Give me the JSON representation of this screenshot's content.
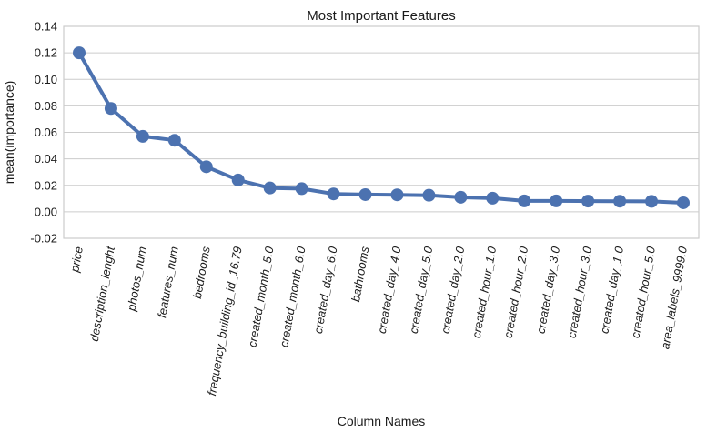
{
  "chart_data": {
    "type": "line",
    "title": "Most Important Features",
    "xlabel": "Column Names",
    "ylabel": "mean(importance)",
    "ylim": [
      -0.02,
      0.14
    ],
    "yticks": [
      "-0.02",
      "0.00",
      "0.02",
      "0.04",
      "0.06",
      "0.08",
      "0.10",
      "0.12",
      "0.14"
    ],
    "grid": true,
    "legend": "none",
    "categories": [
      "price",
      "description_lenght",
      "photos_num",
      "features_num",
      "bedrooms",
      "frequency_building_id_16.79",
      "created_month_5.0",
      "created_month_6.0",
      "created_day_6.0",
      "bathrooms",
      "created_day_4.0",
      "created_day_5.0",
      "created_day_2.0",
      "created_hour_1.0",
      "created_hour_2.0",
      "created_day_3.0",
      "created_hour_3.0",
      "created_day_1.0",
      "created_hour_5.0",
      "area_labels_9999.0"
    ],
    "values": [
      0.12,
      0.078,
      0.057,
      0.054,
      0.034,
      0.024,
      0.018,
      0.0175,
      0.0135,
      0.013,
      0.0128,
      0.0125,
      0.011,
      0.0103,
      0.0082,
      0.0082,
      0.0081,
      0.008,
      0.0079,
      0.0068
    ],
    "colors": {
      "line": "#4c72b0",
      "grid": "#cccccc",
      "frame": "#cccccc",
      "background": "#ffffff"
    }
  }
}
